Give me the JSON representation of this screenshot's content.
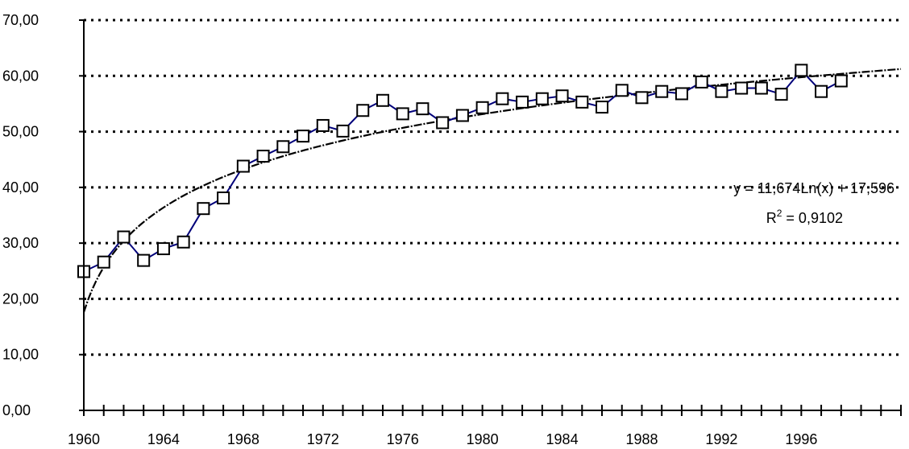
{
  "chart_data": {
    "type": "line",
    "title": "",
    "xlabel": "",
    "ylabel": "",
    "xlim": [
      1960,
      2001
    ],
    "ylim": [
      0,
      70
    ],
    "y_ticks": [
      "0,00",
      "10,00",
      "20,00",
      "30,00",
      "40,00",
      "50,00",
      "60,00",
      "70,00"
    ],
    "x_ticks": [
      "1960",
      "1964",
      "1968",
      "1972",
      "1976",
      "1980",
      "1984",
      "1988",
      "1992",
      "1996"
    ],
    "grid": "horizontal dotted",
    "series": [
      {
        "x": [
          1960,
          1961,
          1962,
          1963,
          1964,
          1965,
          1966,
          1967,
          1968,
          1969,
          1970,
          1971,
          1972,
          1973,
          1974,
          1975,
          1976,
          1977,
          1978,
          1979,
          1980,
          1981,
          1982,
          1983,
          1984,
          1985,
          1986,
          1987,
          1988,
          1989,
          1990,
          1991,
          1992,
          1993,
          1994,
          1995,
          1996,
          1997,
          1998
        ],
        "values": [
          24.9,
          26.6,
          31.1,
          26.9,
          29.0,
          30.2,
          36.2,
          38.1,
          43.8,
          45.6,
          47.3,
          49.2,
          51.1,
          50.1,
          53.8,
          55.6,
          53.2,
          54.1,
          51.6,
          52.9,
          54.3,
          55.9,
          55.3,
          55.9,
          56.4,
          55.3,
          54.4,
          57.4,
          56.1,
          57.2,
          56.8,
          58.9,
          57.2,
          57.8,
          57.8,
          56.7,
          61.0,
          57.2,
          59.1
        ],
        "marker": "square",
        "color": "#00007a"
      }
    ],
    "trendline": {
      "type": "logarithmic",
      "a": 11.674,
      "b": 17.596,
      "equation": "y = 11,674Ln(x) + 17,596",
      "r2_prefix": "R",
      "r2_sup": "2",
      "r2_value": " = 0,9102"
    }
  }
}
